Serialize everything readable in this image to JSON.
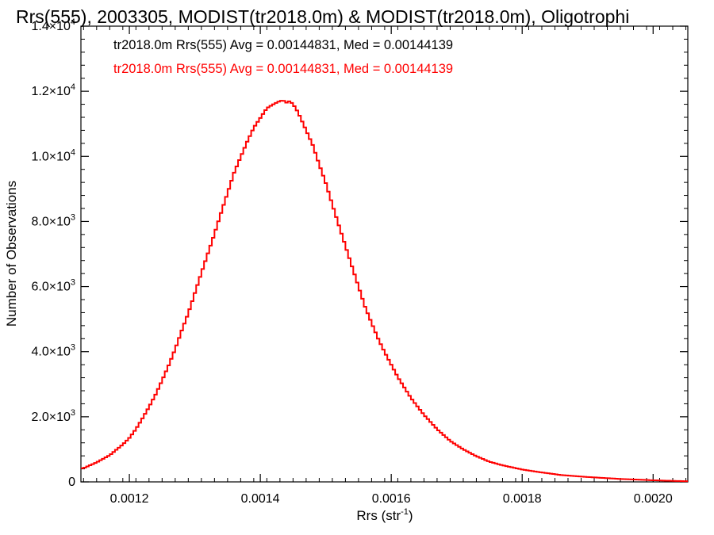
{
  "chart_data": {
    "type": "histogram-step",
    "title": "Rrs(555), 2003305, MODIST(tr2018.0m) & MODIST(tr2018.0m), Oligotrophi",
    "xlabel": "Rrs (str",
    "xlabel_sup": "-1",
    "xlabel_end": ")",
    "ylabel": "Number of Observations",
    "xlim": [
      0.001126,
      0.002053
    ],
    "ylim": [
      0,
      14000
    ],
    "x_ticks": [
      {
        "value": 0.0012,
        "label": "0.0012"
      },
      {
        "value": 0.0014,
        "label": "0.0014"
      },
      {
        "value": 0.0016,
        "label": "0.0016"
      },
      {
        "value": 0.0018,
        "label": "0.0018"
      },
      {
        "value": 0.002,
        "label": "0.0020"
      }
    ],
    "y_ticks": [
      {
        "value": 0,
        "mant": "0",
        "exp": ""
      },
      {
        "value": 2000,
        "mant": "2.0×10",
        "exp": "3"
      },
      {
        "value": 4000,
        "mant": "4.0×10",
        "exp": "3"
      },
      {
        "value": 6000,
        "mant": "6.0×10",
        "exp": "3"
      },
      {
        "value": 8000,
        "mant": "8.0×10",
        "exp": "3"
      },
      {
        "value": 10000,
        "mant": "1.0×10",
        "exp": "4"
      },
      {
        "value": 12000,
        "mant": "1.2×10",
        "exp": "4"
      },
      {
        "value": 14000,
        "mant": "1.4×10",
        "exp": "4"
      }
    ],
    "annotations": [
      {
        "text": "tr2018.0m Rrs(555) Avg = 0.00144831, Med = 0.00144139",
        "color": "#000000"
      },
      {
        "text": "tr2018.0m Rrs(555) Avg = 0.00144831, Med = 0.00144139",
        "color": "#ff0000"
      }
    ],
    "series": [
      {
        "color": "#ff0000",
        "bin_width": 4e-06,
        "x": [
          0.00113,
          0.00115,
          0.00117,
          0.00119,
          0.0012,
          0.00121,
          0.00122,
          0.00123,
          0.00124,
          0.00125,
          0.00126,
          0.00127,
          0.00128,
          0.00129,
          0.0013,
          0.00131,
          0.00132,
          0.00133,
          0.00134,
          0.00135,
          0.00136,
          0.00137,
          0.00138,
          0.00139,
          0.0014,
          0.00141,
          0.00142,
          0.00143,
          0.001435,
          0.00144,
          0.001445,
          0.00145,
          0.001455,
          0.00146,
          0.00147,
          0.00148,
          0.00149,
          0.0015,
          0.00151,
          0.00152,
          0.00153,
          0.00154,
          0.00155,
          0.00156,
          0.00157,
          0.00158,
          0.00159,
          0.0016,
          0.00161,
          0.00162,
          0.00163,
          0.00165,
          0.00167,
          0.00169,
          0.00171,
          0.00173,
          0.00175,
          0.00177,
          0.0018,
          0.00183,
          0.00186,
          0.0019,
          0.00195,
          0.002,
          0.00205
        ],
        "values": [
          420,
          600,
          820,
          1150,
          1350,
          1620,
          1950,
          2300,
          2680,
          3120,
          3580,
          4080,
          4650,
          5180,
          5800,
          6420,
          7020,
          7620,
          8260,
          8880,
          9500,
          9980,
          10450,
          10880,
          11180,
          11480,
          11600,
          11700,
          11720,
          11650,
          11700,
          11600,
          11450,
          11250,
          10800,
          10350,
          9750,
          9180,
          8520,
          7880,
          7250,
          6620,
          6000,
          5380,
          4880,
          4400,
          3980,
          3600,
          3220,
          2900,
          2580,
          2060,
          1620,
          1260,
          1000,
          790,
          620,
          510,
          380,
          290,
          210,
          150,
          90,
          50,
          20
        ]
      }
    ]
  }
}
